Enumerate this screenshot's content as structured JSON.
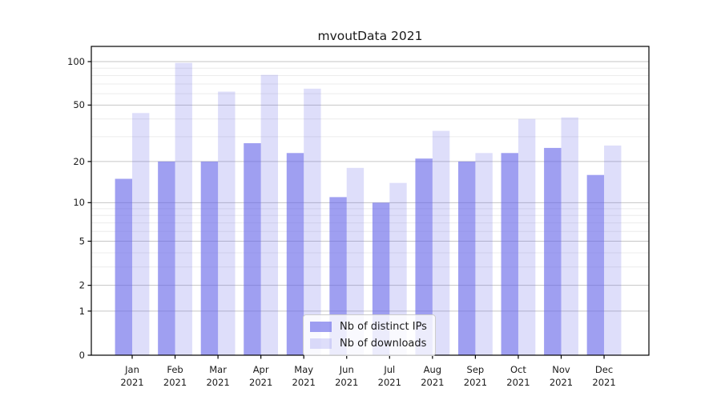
{
  "chart_data": {
    "type": "bar",
    "title": "mvoutData 2021",
    "categories": [
      "Jan 2021",
      "Feb 2021",
      "Mar 2021",
      "Apr 2021",
      "May 2021",
      "Jun 2021",
      "Jul 2021",
      "Aug 2021",
      "Sep 2021",
      "Oct 2021",
      "Nov 2021",
      "Dec 2021"
    ],
    "series": [
      {
        "name": "Nb of distinct IPs",
        "color": "rgba(100,100,232,0.62)",
        "values": [
          15,
          20,
          20,
          27,
          23,
          11,
          10,
          21,
          20,
          23,
          25,
          16
        ]
      },
      {
        "name": "Nb of downloads",
        "color": "rgba(100,100,232,0.21)",
        "values": [
          44,
          98,
          62,
          81,
          65,
          18,
          14,
          33,
          23,
          40,
          41,
          26
        ]
      }
    ],
    "xlabel": "",
    "ylabel": "",
    "yscale": "log1p",
    "ylim": [
      0,
      127
    ],
    "yticks_major": [
      0,
      1,
      2,
      5,
      10,
      20,
      50,
      100
    ],
    "yticks_minor": [
      3,
      4,
      6,
      7,
      8,
      9,
      30,
      40,
      60,
      70,
      80,
      90
    ],
    "grid": true,
    "legend_position": "bottom-center"
  },
  "colors": {
    "bar_base": "#6464e8",
    "grid_major": "#c6c6c6",
    "grid_minor": "#ececec",
    "axis": "#000000",
    "text": "#1a1a1a",
    "legend_border": "#cccccc",
    "legend_bg": "rgba(255,255,255,0.8)"
  }
}
